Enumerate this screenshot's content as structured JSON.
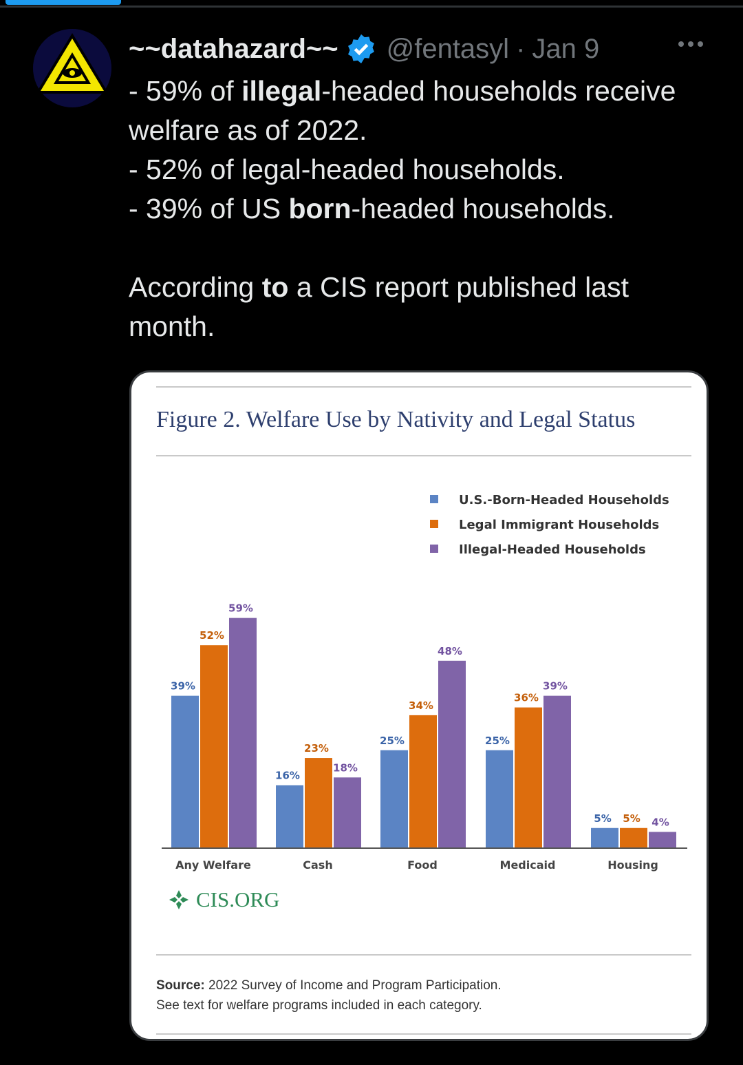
{
  "tweet": {
    "display_name": "~~datahazard~~",
    "handle": "@fentasyl",
    "separator": "·",
    "date": "Jan 9",
    "lines": [
      [
        {
          "t": "- 59% of "
        },
        {
          "t": "illegal",
          "b": true
        },
        {
          "t": "-headed households receive welfare as of 2022."
        }
      ],
      [
        {
          "t": "- 52% of legal-headed households."
        }
      ],
      [
        {
          "t": "- 39% of US "
        },
        {
          "t": "born",
          "b": true
        },
        {
          "t": "-headed households."
        }
      ],
      [],
      [
        {
          "t": "According "
        },
        {
          "t": "to",
          "b": true
        },
        {
          "t": " a CIS report published last month."
        }
      ]
    ]
  },
  "card": {
    "figure_title": "Figure 2. Welfare Use by Nativity and Legal Status",
    "logo_text": "CIS.ORG",
    "source_label": "Source:",
    "source_text": "2022 Survey of Income and Program Participation.",
    "source_note": "See text for welfare programs included in each category."
  },
  "chart_data": {
    "type": "bar",
    "categories": [
      "Any Welfare",
      "Cash",
      "Food",
      "Medicaid",
      "Housing"
    ],
    "series": [
      {
        "name": "U.S.-Born-Headed Households",
        "values": [
          39,
          16,
          25,
          25,
          5
        ],
        "labels": [
          "39%",
          "16%",
          "25%",
          "25%",
          "5%"
        ],
        "color": "#5b84c4"
      },
      {
        "name": "Legal Immigrant Households",
        "values": [
          52,
          23,
          34,
          36,
          5
        ],
        "labels": [
          "52%",
          "23%",
          "34%",
          "36%",
          "5%"
        ],
        "color": "#dd6d0d"
      },
      {
        "name": "Illegal-Headed Households",
        "values": [
          59,
          18,
          48,
          39,
          4
        ],
        "labels": [
          "59%",
          "18%",
          "48%",
          "39%",
          "4%"
        ],
        "color": "#8064a8"
      }
    ],
    "label_colors": [
      "#3b64a8",
      "#c45f0a",
      "#7253a0"
    ],
    "ylim": [
      0,
      63
    ],
    "legend": "top-right",
    "grid": false
  }
}
